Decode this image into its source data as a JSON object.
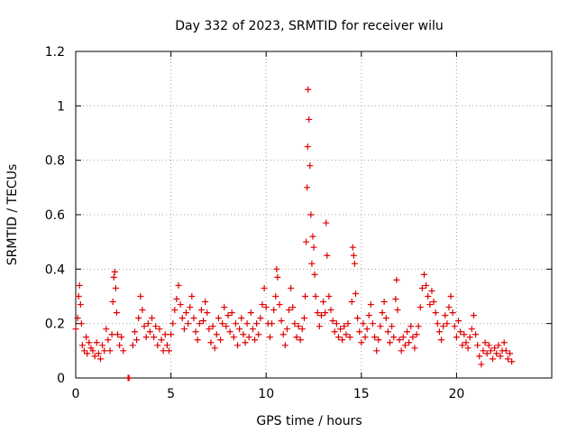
{
  "chart_data": {
    "type": "scatter",
    "title": "Day 332 of 2023, SRMTID for receiver wilu",
    "xlabel": "GPS time / hours",
    "ylabel": "SRMTID / TECUs",
    "xlim": [
      0,
      25
    ],
    "ylim": [
      0,
      1.2
    ],
    "xticks": [
      0,
      5,
      10,
      15,
      20
    ],
    "xtick_labels": [
      "0",
      "5",
      "10",
      "15",
      "20"
    ],
    "yticks": [
      0,
      0.2,
      0.4,
      0.6,
      0.8,
      1.0,
      1.2
    ],
    "ytick_labels": [
      "0",
      "0.2",
      "0.4",
      "0.6",
      "0.8",
      "1",
      "1.2"
    ],
    "grid": true,
    "marker": "+",
    "color": "#e00000",
    "series": [
      {
        "name": "SRMTID",
        "points": [
          [
            0.0,
            0.18
          ],
          [
            0.1,
            0.22
          ],
          [
            0.15,
            0.3
          ],
          [
            0.2,
            0.34
          ],
          [
            0.25,
            0.27
          ],
          [
            0.3,
            0.2
          ],
          [
            0.35,
            0.12
          ],
          [
            0.45,
            0.1
          ],
          [
            0.55,
            0.15
          ],
          [
            0.6,
            0.09
          ],
          [
            0.7,
            0.13
          ],
          [
            0.8,
            0.11
          ],
          [
            0.9,
            0.1
          ],
          [
            1.0,
            0.08
          ],
          [
            1.1,
            0.13
          ],
          [
            1.2,
            0.09
          ],
          [
            1.3,
            0.07
          ],
          [
            1.4,
            0.12
          ],
          [
            1.5,
            0.1
          ],
          [
            1.6,
            0.18
          ],
          [
            1.7,
            0.14
          ],
          [
            1.8,
            0.1
          ],
          [
            1.9,
            0.16
          ],
          [
            1.95,
            0.28
          ],
          [
            2.0,
            0.37
          ],
          [
            2.05,
            0.39
          ],
          [
            2.1,
            0.33
          ],
          [
            2.15,
            0.24
          ],
          [
            2.2,
            0.16
          ],
          [
            2.3,
            0.12
          ],
          [
            2.4,
            0.15
          ],
          [
            2.5,
            0.1
          ],
          [
            2.75,
            0.0
          ],
          [
            2.8,
            0.0
          ],
          [
            3.0,
            0.12
          ],
          [
            3.1,
            0.17
          ],
          [
            3.2,
            0.14
          ],
          [
            3.3,
            0.22
          ],
          [
            3.4,
            0.3
          ],
          [
            3.5,
            0.25
          ],
          [
            3.6,
            0.19
          ],
          [
            3.7,
            0.15
          ],
          [
            3.8,
            0.2
          ],
          [
            3.9,
            0.17
          ],
          [
            4.0,
            0.22
          ],
          [
            4.1,
            0.15
          ],
          [
            4.2,
            0.19
          ],
          [
            4.3,
            0.12
          ],
          [
            4.4,
            0.18
          ],
          [
            4.5,
            0.14
          ],
          [
            4.6,
            0.1
          ],
          [
            4.7,
            0.16
          ],
          [
            4.8,
            0.12
          ],
          [
            4.9,
            0.1
          ],
          [
            5.0,
            0.16
          ],
          [
            5.1,
            0.2
          ],
          [
            5.2,
            0.25
          ],
          [
            5.3,
            0.29
          ],
          [
            5.4,
            0.34
          ],
          [
            5.5,
            0.27
          ],
          [
            5.6,
            0.22
          ],
          [
            5.7,
            0.18
          ],
          [
            5.8,
            0.24
          ],
          [
            5.9,
            0.2
          ],
          [
            6.0,
            0.26
          ],
          [
            6.1,
            0.3
          ],
          [
            6.2,
            0.22
          ],
          [
            6.3,
            0.17
          ],
          [
            6.4,
            0.14
          ],
          [
            6.5,
            0.2
          ],
          [
            6.6,
            0.25
          ],
          [
            6.7,
            0.21
          ],
          [
            6.8,
            0.28
          ],
          [
            6.9,
            0.24
          ],
          [
            7.0,
            0.18
          ],
          [
            7.1,
            0.13
          ],
          [
            7.2,
            0.19
          ],
          [
            7.3,
            0.11
          ],
          [
            7.4,
            0.16
          ],
          [
            7.5,
            0.22
          ],
          [
            7.6,
            0.14
          ],
          [
            7.7,
            0.2
          ],
          [
            7.8,
            0.26
          ],
          [
            7.9,
            0.19
          ],
          [
            8.0,
            0.23
          ],
          [
            8.1,
            0.17
          ],
          [
            8.2,
            0.24
          ],
          [
            8.3,
            0.15
          ],
          [
            8.4,
            0.2
          ],
          [
            8.5,
            0.12
          ],
          [
            8.6,
            0.18
          ],
          [
            8.7,
            0.22
          ],
          [
            8.8,
            0.16
          ],
          [
            8.9,
            0.13
          ],
          [
            9.0,
            0.2
          ],
          [
            9.1,
            0.15
          ],
          [
            9.2,
            0.24
          ],
          [
            9.3,
            0.18
          ],
          [
            9.4,
            0.14
          ],
          [
            9.5,
            0.2
          ],
          [
            9.6,
            0.16
          ],
          [
            9.7,
            0.22
          ],
          [
            9.8,
            0.27
          ],
          [
            9.9,
            0.33
          ],
          [
            10.0,
            0.26
          ],
          [
            10.1,
            0.2
          ],
          [
            10.2,
            0.15
          ],
          [
            10.3,
            0.2
          ],
          [
            10.4,
            0.25
          ],
          [
            10.5,
            0.3
          ],
          [
            10.55,
            0.4
          ],
          [
            10.6,
            0.37
          ],
          [
            10.7,
            0.27
          ],
          [
            10.8,
            0.21
          ],
          [
            10.9,
            0.16
          ],
          [
            11.0,
            0.12
          ],
          [
            11.1,
            0.18
          ],
          [
            11.2,
            0.25
          ],
          [
            11.3,
            0.33
          ],
          [
            11.4,
            0.26
          ],
          [
            11.5,
            0.2
          ],
          [
            11.6,
            0.15
          ],
          [
            11.7,
            0.19
          ],
          [
            11.8,
            0.14
          ],
          [
            11.9,
            0.18
          ],
          [
            12.0,
            0.22
          ],
          [
            12.05,
            0.3
          ],
          [
            12.1,
            0.5
          ],
          [
            12.15,
            0.7
          ],
          [
            12.18,
            0.85
          ],
          [
            12.2,
            1.06
          ],
          [
            12.25,
            0.95
          ],
          [
            12.3,
            0.78
          ],
          [
            12.35,
            0.6
          ],
          [
            12.4,
            0.42
          ],
          [
            12.45,
            0.52
          ],
          [
            12.5,
            0.48
          ],
          [
            12.55,
            0.38
          ],
          [
            12.6,
            0.3
          ],
          [
            12.7,
            0.24
          ],
          [
            12.8,
            0.19
          ],
          [
            12.9,
            0.23
          ],
          [
            13.0,
            0.28
          ],
          [
            13.1,
            0.24
          ],
          [
            13.15,
            0.57
          ],
          [
            13.2,
            0.45
          ],
          [
            13.3,
            0.3
          ],
          [
            13.4,
            0.25
          ],
          [
            13.5,
            0.21
          ],
          [
            13.6,
            0.17
          ],
          [
            13.7,
            0.2
          ],
          [
            13.8,
            0.15
          ],
          [
            13.9,
            0.18
          ],
          [
            14.0,
            0.14
          ],
          [
            14.1,
            0.19
          ],
          [
            14.2,
            0.16
          ],
          [
            14.3,
            0.2
          ],
          [
            14.4,
            0.15
          ],
          [
            14.5,
            0.28
          ],
          [
            14.55,
            0.48
          ],
          [
            14.6,
            0.45
          ],
          [
            14.65,
            0.42
          ],
          [
            14.7,
            0.31
          ],
          [
            14.8,
            0.22
          ],
          [
            14.9,
            0.17
          ],
          [
            15.0,
            0.13
          ],
          [
            15.1,
            0.2
          ],
          [
            15.2,
            0.15
          ],
          [
            15.3,
            0.18
          ],
          [
            15.4,
            0.23
          ],
          [
            15.5,
            0.27
          ],
          [
            15.6,
            0.2
          ],
          [
            15.7,
            0.15
          ],
          [
            15.8,
            0.1
          ],
          [
            15.9,
            0.14
          ],
          [
            16.0,
            0.19
          ],
          [
            16.1,
            0.24
          ],
          [
            16.2,
            0.28
          ],
          [
            16.3,
            0.22
          ],
          [
            16.4,
            0.17
          ],
          [
            16.5,
            0.13
          ],
          [
            16.6,
            0.19
          ],
          [
            16.7,
            0.15
          ],
          [
            16.8,
            0.29
          ],
          [
            16.85,
            0.36
          ],
          [
            16.9,
            0.25
          ],
          [
            17.0,
            0.14
          ],
          [
            17.1,
            0.1
          ],
          [
            17.2,
            0.15
          ],
          [
            17.3,
            0.12
          ],
          [
            17.4,
            0.17
          ],
          [
            17.5,
            0.13
          ],
          [
            17.6,
            0.19
          ],
          [
            17.7,
            0.15
          ],
          [
            17.8,
            0.11
          ],
          [
            17.9,
            0.16
          ],
          [
            18.0,
            0.19
          ],
          [
            18.1,
            0.26
          ],
          [
            18.2,
            0.33
          ],
          [
            18.3,
            0.38
          ],
          [
            18.4,
            0.34
          ],
          [
            18.5,
            0.3
          ],
          [
            18.6,
            0.27
          ],
          [
            18.7,
            0.32
          ],
          [
            18.8,
            0.28
          ],
          [
            18.9,
            0.24
          ],
          [
            19.0,
            0.2
          ],
          [
            19.1,
            0.17
          ],
          [
            19.2,
            0.14
          ],
          [
            19.3,
            0.19
          ],
          [
            19.4,
            0.23
          ],
          [
            19.5,
            0.2
          ],
          [
            19.6,
            0.26
          ],
          [
            19.7,
            0.3
          ],
          [
            19.8,
            0.24
          ],
          [
            19.9,
            0.19
          ],
          [
            20.0,
            0.15
          ],
          [
            20.1,
            0.21
          ],
          [
            20.2,
            0.17
          ],
          [
            20.3,
            0.12
          ],
          [
            20.4,
            0.16
          ],
          [
            20.5,
            0.13
          ],
          [
            20.6,
            0.11
          ],
          [
            20.7,
            0.15
          ],
          [
            20.8,
            0.18
          ],
          [
            20.9,
            0.23
          ],
          [
            21.0,
            0.16
          ],
          [
            21.1,
            0.12
          ],
          [
            21.2,
            0.08
          ],
          [
            21.3,
            0.05
          ],
          [
            21.4,
            0.1
          ],
          [
            21.5,
            0.13
          ],
          [
            21.6,
            0.09
          ],
          [
            21.7,
            0.12
          ],
          [
            21.8,
            0.1
          ],
          [
            21.9,
            0.07
          ],
          [
            22.0,
            0.11
          ],
          [
            22.1,
            0.09
          ],
          [
            22.2,
            0.12
          ],
          [
            22.3,
            0.08
          ],
          [
            22.4,
            0.1
          ],
          [
            22.5,
            0.13
          ],
          [
            22.6,
            0.1
          ],
          [
            22.7,
            0.07
          ],
          [
            22.8,
            0.09
          ],
          [
            22.9,
            0.06
          ]
        ]
      }
    ]
  }
}
